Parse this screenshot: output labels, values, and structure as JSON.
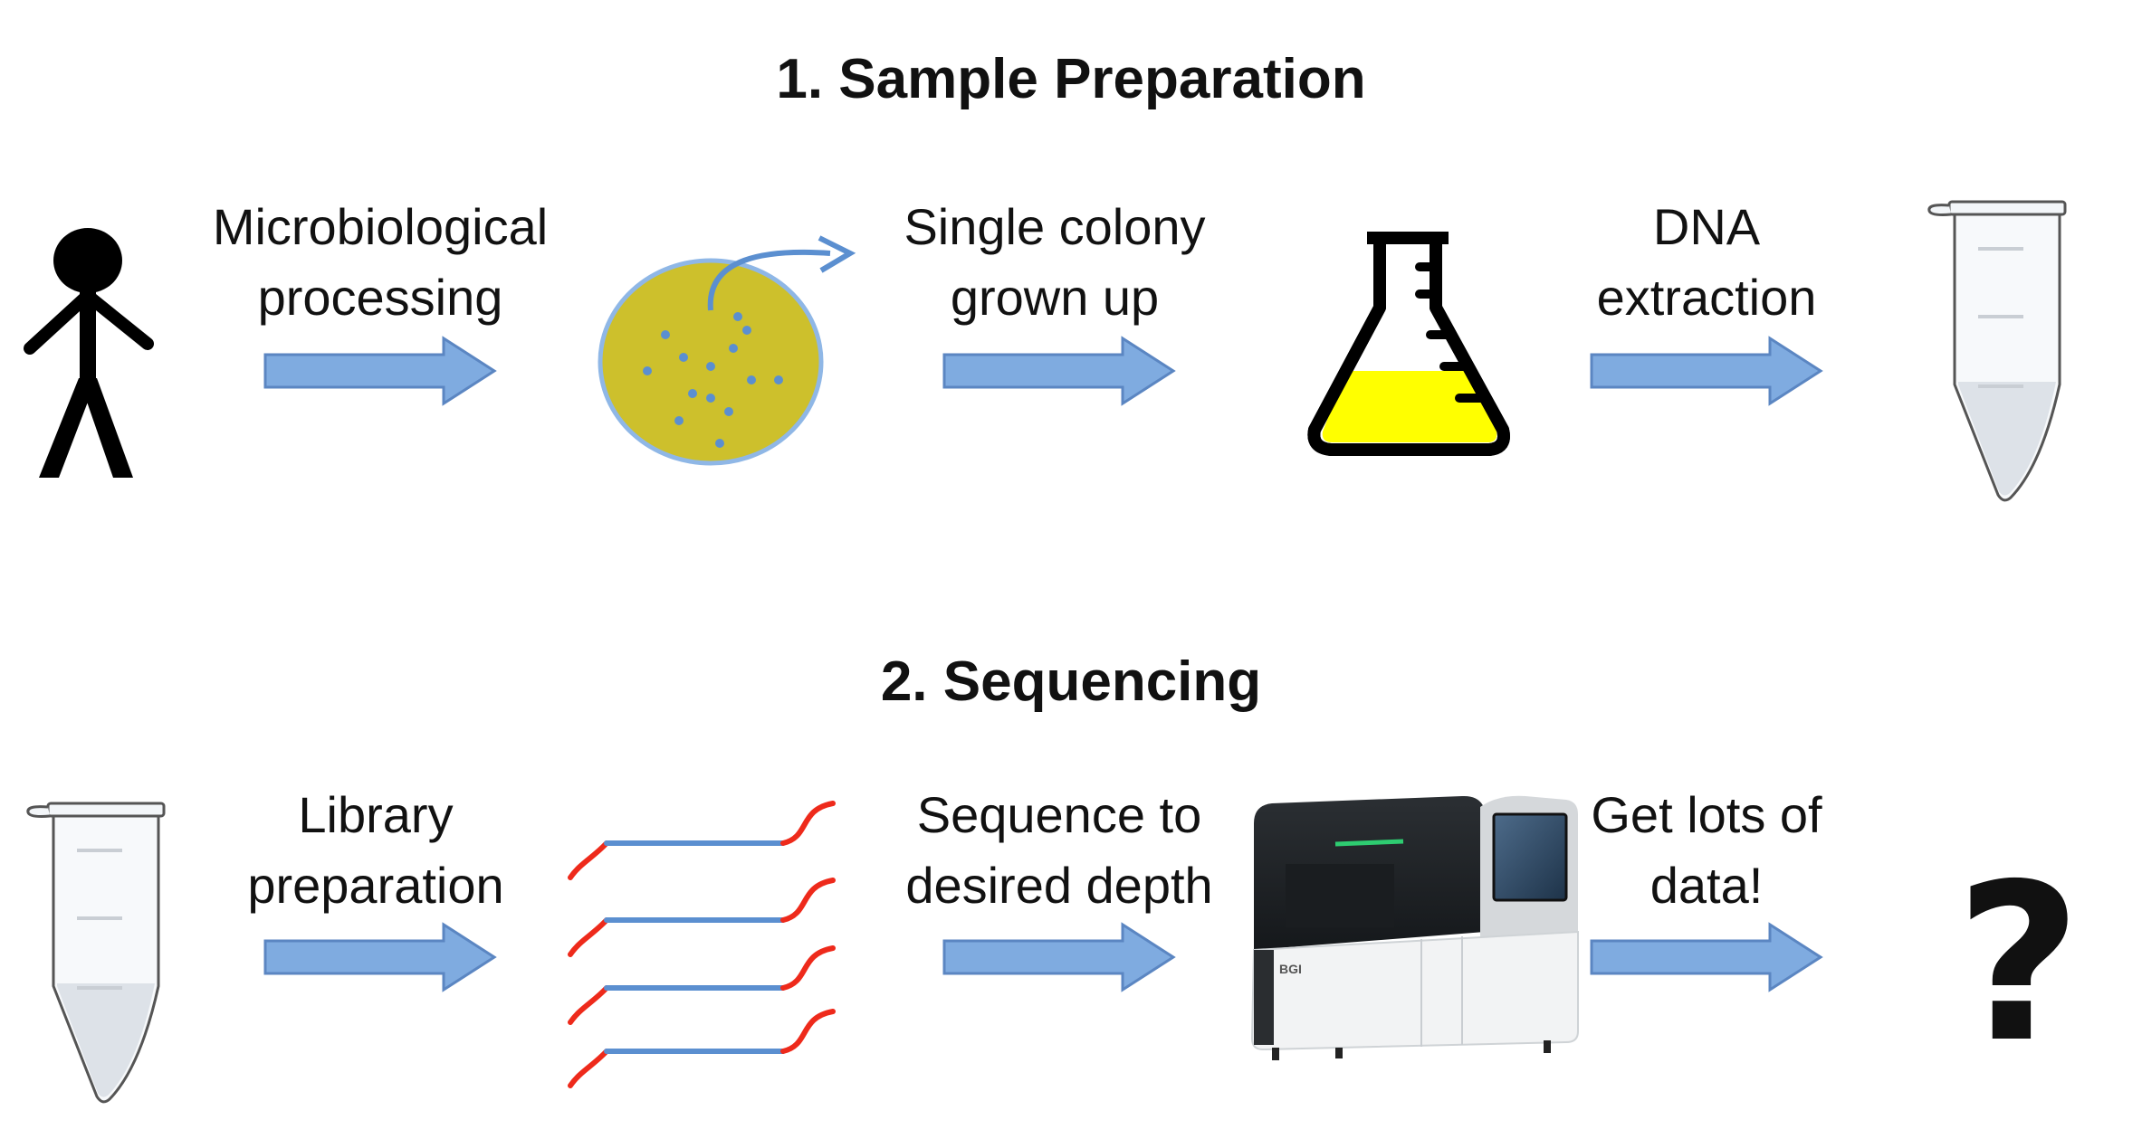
{
  "sections": [
    {
      "title": "1. Sample Preparation"
    },
    {
      "title": "2. Sequencing"
    }
  ],
  "row1": {
    "steps": [
      {
        "label_lines": [
          "Microbiological",
          "processing"
        ]
      },
      {
        "label_lines": [
          "Single colony",
          "grown up"
        ]
      },
      {
        "label_lines": [
          "DNA",
          "extraction"
        ]
      }
    ]
  },
  "row2": {
    "steps": [
      {
        "label_lines": [
          "Library",
          "preparation"
        ]
      },
      {
        "label_lines": [
          "Sequence to",
          "desired depth"
        ]
      },
      {
        "label_lines": [
          "Get lots of",
          "data!"
        ]
      }
    ],
    "end_symbol": "?",
    "machine_brand": "BGI"
  },
  "colors": {
    "arrow_fill": "#7fabe0",
    "arrow_stroke": "#5b86c2",
    "plate_fill": "#cdc02c",
    "plate_dot": "#5b8fd0",
    "flask_liquid": "#ffff00",
    "dna_adapter": "#ee2a1b",
    "dna_insert": "#5b8fd0",
    "machine_accent": "#2ecc71"
  },
  "icons": [
    "person-icon",
    "petri-dish-icon",
    "flask-icon",
    "tube-icon",
    "dna-fragments-icon",
    "sequencer-icon"
  ]
}
